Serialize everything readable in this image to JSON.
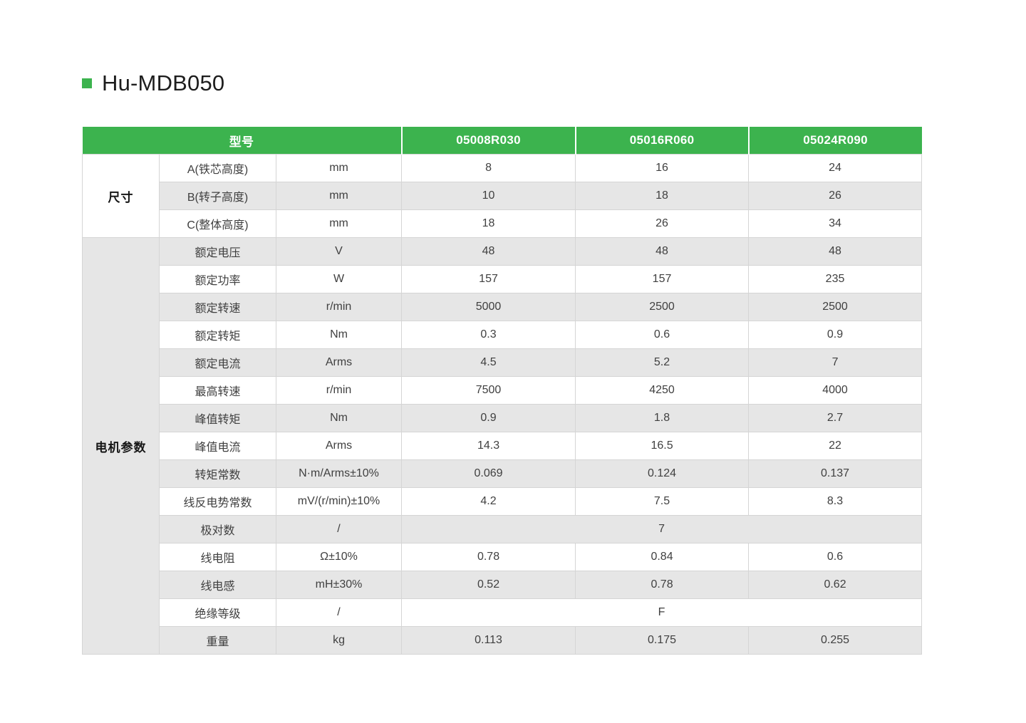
{
  "page": {
    "title": "Hu-MDB050",
    "accent_color": "#3cb34e",
    "stripe_color": "#e6e6e6"
  },
  "table": {
    "header": {
      "model_label": "型号",
      "models": [
        "05008R030",
        "05016R060",
        "05024R090"
      ]
    },
    "sections": [
      {
        "label": "尺寸",
        "rows": [
          {
            "name": "A(铁芯高度)",
            "unit": "mm",
            "values": [
              "8",
              "16",
              "24"
            ]
          },
          {
            "name": "B(转子高度)",
            "unit": "mm",
            "values": [
              "10",
              "18",
              "26"
            ]
          },
          {
            "name": "C(整体高度)",
            "unit": "mm",
            "values": [
              "18",
              "26",
              "34"
            ]
          }
        ]
      },
      {
        "label": "电机参数",
        "rows": [
          {
            "name": "额定电压",
            "unit": "V",
            "values": [
              "48",
              "48",
              "48"
            ]
          },
          {
            "name": "额定功率",
            "unit": "W",
            "values": [
              "157",
              "157",
              "235"
            ]
          },
          {
            "name": "额定转速",
            "unit": "r/min",
            "values": [
              "5000",
              "2500",
              "2500"
            ]
          },
          {
            "name": "额定转矩",
            "unit": "Nm",
            "values": [
              "0.3",
              "0.6",
              "0.9"
            ]
          },
          {
            "name": "额定电流",
            "unit": "Arms",
            "values": [
              "4.5",
              "5.2",
              "7"
            ]
          },
          {
            "name": "最高转速",
            "unit": "r/min",
            "values": [
              "7500",
              "4250",
              "4000"
            ]
          },
          {
            "name": "峰值转矩",
            "unit": "Nm",
            "values": [
              "0.9",
              "1.8",
              "2.7"
            ]
          },
          {
            "name": "峰值电流",
            "unit": "Arms",
            "values": [
              "14.3",
              "16.5",
              "22"
            ]
          },
          {
            "name": "转矩常数",
            "unit": "N·m/Arms±10%",
            "values": [
              "0.069",
              "0.124",
              "0.137"
            ]
          },
          {
            "name": "线反电势常数",
            "unit": "mV/(r/min)±10%",
            "values": [
              "4.2",
              "7.5",
              "8.3"
            ]
          },
          {
            "name": "极对数",
            "unit": "/",
            "merged_value": "7"
          },
          {
            "name": "线电阻",
            "unit": "Ω±10%",
            "values": [
              "0.78",
              "0.84",
              "0.6"
            ]
          },
          {
            "name": "线电感",
            "unit": "mH±30%",
            "values": [
              "0.52",
              "0.78",
              "0.62"
            ]
          },
          {
            "name": "绝缘等级",
            "unit": "/",
            "merged_value": "F"
          },
          {
            "name": "重量",
            "unit": "kg",
            "values": [
              "0.113",
              "0.175",
              "0.255"
            ]
          }
        ]
      }
    ]
  }
}
